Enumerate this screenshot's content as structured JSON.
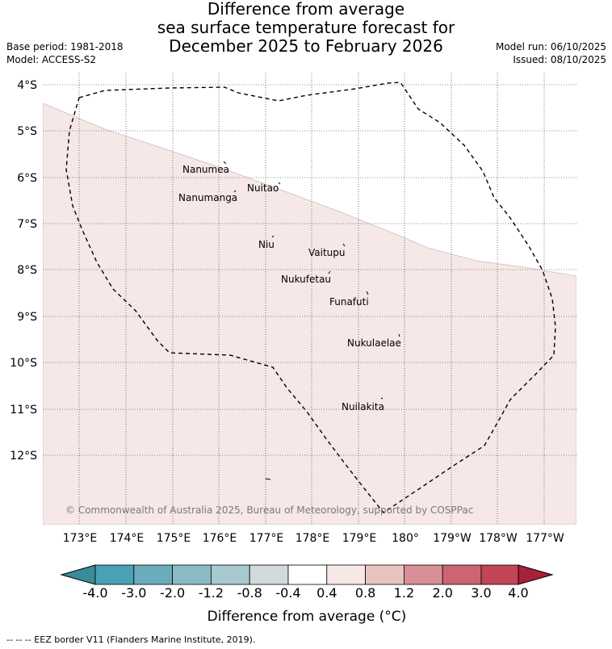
{
  "title": {
    "line1": "Difference from average",
    "line2": "sea surface temperature forecast for",
    "line3": "December 2025 to February 2026"
  },
  "header": {
    "base_period": "Base period: 1981-2018",
    "model": "Model: ACCESS-S2",
    "model_run": "Model run: 06/10/2025",
    "issued": "Issued: 08/10/2025"
  },
  "map": {
    "lat_labels": [
      "4°S",
      "5°S",
      "6°S",
      "7°S",
      "8°S",
      "9°S",
      "10°S",
      "11°S",
      "12°S"
    ],
    "lon_labels": [
      "173°E",
      "174°E",
      "175°E",
      "176°E",
      "177°E",
      "178°E",
      "179°E",
      "180°",
      "179°W",
      "178°W",
      "177°W"
    ],
    "anomaly_fill_color": "#f5e8e6",
    "places": [
      "Nanumea",
      "Nuitao",
      "Nanumanga",
      "Niu",
      "Vaitupu",
      "Nukufetau",
      "Funafuti",
      "Nukulaelae",
      "Nuilakita"
    ],
    "copyright": "© Commonwealth of Australia 2025, Bureau of Meteorology, supported by COSPPac"
  },
  "colorbar": {
    "ticks": [
      "-4.0",
      "-3.0",
      "-2.0",
      "-1.2",
      "-0.8",
      "-0.4",
      "0.4",
      "0.8",
      "1.2",
      "2.0",
      "3.0",
      "4.0"
    ],
    "colors": [
      "#3a8c99",
      "#4aa0b4",
      "#6aacbb",
      "#8bbac5",
      "#a8c9cd",
      "#d2d9da",
      "#ffffff",
      "#f5e8e6",
      "#e8c4c1",
      "#d98f97",
      "#cc6472",
      "#c24656",
      "#a8203a"
    ],
    "title": "Difference from average (°C)"
  },
  "footer": {
    "legend": "--  --  -- EEZ border V11 (Flanders Marine Institute, 2019)."
  }
}
